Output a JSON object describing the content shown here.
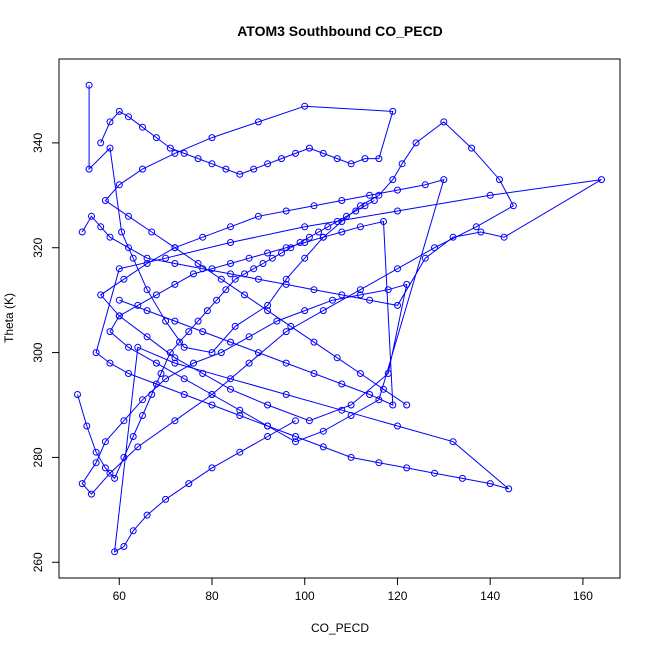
{
  "chart_data": {
    "type": "line",
    "title": "ATOM3 Southbound CO_PECD",
    "xlabel": "CO_PECD",
    "ylabel": "Theta (K)",
    "xlim": [
      47,
      168
    ],
    "ylim": [
      257,
      356
    ],
    "xticks": [
      60,
      80,
      100,
      120,
      140,
      160
    ],
    "yticks": [
      260,
      280,
      300,
      320,
      340
    ],
    "grid": false,
    "legend": "none",
    "marker": "open-circle",
    "color": "#0000ff",
    "series": [
      {
        "x": [
          53.5,
          53.5,
          58,
          60.5,
          63,
          66,
          70,
          74,
          80,
          85,
          92,
          96,
          100,
          104,
          108,
          112,
          116,
          119,
          121,
          124,
          130,
          136,
          142,
          145,
          137,
          128,
          120,
          112,
          104,
          96,
          88,
          80,
          72,
          64,
          58,
          54,
          52,
          55,
          57,
          61,
          65,
          70,
          76,
          82,
          88,
          94,
          100,
          106,
          112,
          118,
          122,
          118,
          110,
          101,
          92,
          84,
          78,
          72,
          66,
          60,
          56,
          61,
          66,
          72,
          78,
          84,
          90,
          96,
          102,
          108,
          114,
          120,
          126,
          130,
          116,
          110,
          104,
          98,
          92,
          86,
          80,
          74,
          68,
          62,
          58,
          60,
          64,
          68,
          72,
          76,
          80,
          84,
          88,
          92,
          96,
          100,
          104,
          108,
          112,
          117,
          119,
          114,
          108,
          102,
          96,
          90,
          84,
          78,
          72,
          66,
          60
        ],
        "y": [
          351,
          335,
          339,
          323,
          318,
          312,
          306,
          301,
          300,
          305,
          309,
          314,
          318,
          322,
          325,
          328,
          330,
          333,
          336,
          340,
          344,
          339,
          333,
          328,
          324,
          320,
          316,
          312,
          308,
          304,
          298,
          292,
          287,
          282,
          277,
          273,
          275,
          279,
          283,
          287,
          291,
          295,
          298,
          300,
          303,
          306,
          308,
          310,
          311,
          312,
          313,
          296,
          290,
          287,
          290,
          293,
          296,
          299,
          303,
          307,
          311,
          314,
          317,
          320,
          322,
          324,
          326,
          327,
          328,
          329,
          330,
          331,
          332,
          333,
          291,
          288,
          285,
          283,
          286,
          289,
          292,
          295,
          298,
          301,
          304,
          307,
          309,
          311,
          313,
          315,
          316,
          317,
          318,
          319,
          320,
          321,
          322,
          323,
          324,
          325,
          290,
          292,
          294,
          296,
          298,
          300,
          302,
          304,
          306,
          308,
          310
        ]
      },
      {
        "x": [
          52,
          54,
          56,
          58,
          62,
          66,
          72,
          78,
          84,
          90,
          96,
          102,
          108,
          114,
          120,
          126,
          132,
          138,
          143,
          164,
          140,
          120,
          100,
          84,
          70,
          60,
          55,
          58,
          62,
          68,
          74,
          80,
          86,
          92,
          98,
          104,
          110,
          116,
          122,
          128,
          134,
          140,
          144,
          132,
          120,
          108,
          96,
          84,
          72,
          64,
          59,
          61,
          63,
          66,
          70,
          75,
          80,
          86,
          92,
          98
        ],
        "y": [
          323,
          326,
          324,
          322,
          320,
          318,
          317,
          316,
          315,
          314,
          313,
          312,
          311,
          310,
          309,
          318,
          322,
          323,
          322,
          333,
          330,
          327,
          324,
          321,
          318,
          316,
          300,
          298,
          296,
          294,
          292,
          290,
          288,
          286,
          284,
          282,
          280,
          279,
          278,
          277,
          276,
          275,
          274,
          283,
          286,
          289,
          292,
          295,
          298,
          301,
          262,
          263,
          266,
          269,
          272,
          275,
          278,
          281,
          284,
          287
        ]
      },
      {
        "x": [
          56,
          58,
          60,
          62,
          65,
          68,
          71,
          74,
          77,
          80,
          83,
          86,
          89,
          92,
          95,
          98,
          101,
          104,
          107,
          110,
          113,
          116,
          119,
          100,
          90,
          80,
          72,
          65,
          60,
          57,
          62,
          67,
          72,
          77,
          82,
          87,
          92,
          97,
          102,
          107,
          112,
          117,
          122
        ],
        "y": [
          340,
          344,
          346,
          345,
          343,
          341,
          339,
          338,
          337,
          336,
          335,
          334,
          335,
          336,
          337,
          338,
          339,
          338,
          337,
          336,
          337,
          337,
          346,
          347,
          344,
          341,
          338,
          335,
          332,
          329,
          326,
          323,
          320,
          317,
          314,
          311,
          308,
          305,
          302,
          299,
          296,
          293,
          290
        ]
      },
      {
        "x": [
          51,
          53,
          55,
          57,
          59,
          61,
          63,
          65,
          67,
          69,
          71,
          73,
          75,
          77,
          79,
          81,
          83,
          85,
          87,
          89,
          91,
          93,
          95,
          97,
          99,
          101,
          103,
          105,
          107,
          109,
          111,
          113,
          115
        ],
        "y": [
          292,
          286,
          281,
          278,
          276,
          280,
          284,
          288,
          292,
          296,
          300,
          302,
          304,
          306,
          308,
          310,
          312,
          314,
          315,
          316,
          317,
          318,
          319,
          320,
          321,
          322,
          323,
          324,
          325,
          326,
          327,
          328,
          329
        ]
      }
    ]
  }
}
